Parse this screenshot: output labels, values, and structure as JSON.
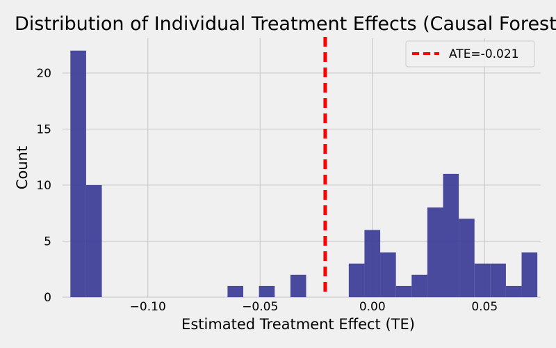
{
  "chart_data": {
    "type": "bar",
    "title": "Distribution of Individual Treatment Effects (Causal Forest)",
    "xlabel": "Estimated Treatment Effect (TE)",
    "ylabel": "Count",
    "xlim": [
      -0.138,
      0.075
    ],
    "ylim": [
      0,
      23.1
    ],
    "grid": true,
    "legend_position": "top-right",
    "bin_width": 0.007,
    "bins": [
      {
        "x0": -0.1345,
        "count": 22
      },
      {
        "x0": -0.1275,
        "count": 10
      },
      {
        "x0": -0.1205,
        "count": 0
      },
      {
        "x0": -0.1135,
        "count": 0
      },
      {
        "x0": -0.1065,
        "count": 0
      },
      {
        "x0": -0.0995,
        "count": 0
      },
      {
        "x0": -0.0925,
        "count": 0
      },
      {
        "x0": -0.0855,
        "count": 0
      },
      {
        "x0": -0.0785,
        "count": 0
      },
      {
        "x0": -0.0715,
        "count": 0
      },
      {
        "x0": -0.0645,
        "count": 1
      },
      {
        "x0": -0.0575,
        "count": 0
      },
      {
        "x0": -0.0505,
        "count": 1
      },
      {
        "x0": -0.0435,
        "count": 0
      },
      {
        "x0": -0.0365,
        "count": 2
      },
      {
        "x0": -0.0295,
        "count": 0
      },
      {
        "x0": -0.0225,
        "count": 0
      },
      {
        "x0": -0.0155,
        "count": 0
      },
      {
        "x0": -0.0105,
        "count": 3
      },
      {
        "x0": -0.0035,
        "count": 6
      },
      {
        "x0": 0.0035,
        "count": 4
      },
      {
        "x0": 0.0105,
        "count": 1
      },
      {
        "x0": 0.0175,
        "count": 2
      },
      {
        "x0": 0.0245,
        "count": 8
      },
      {
        "x0": 0.0315,
        "count": 11
      },
      {
        "x0": 0.0385,
        "count": 7
      },
      {
        "x0": 0.0455,
        "count": 3
      },
      {
        "x0": 0.0525,
        "count": 3
      },
      {
        "x0": 0.0595,
        "count": 1
      },
      {
        "x0": 0.0665,
        "count": 4
      }
    ],
    "xticks": [
      {
        "value": -0.1,
        "label": "−0.10"
      },
      {
        "value": -0.05,
        "label": "−0.05"
      },
      {
        "value": 0.0,
        "label": "0.00"
      },
      {
        "value": 0.05,
        "label": "0.05"
      }
    ],
    "yticks": [
      {
        "value": 0,
        "label": "0"
      },
      {
        "value": 5,
        "label": "5"
      },
      {
        "value": 10,
        "label": "10"
      },
      {
        "value": 15,
        "label": "15"
      },
      {
        "value": 20,
        "label": "20"
      }
    ],
    "ate": {
      "value": -0.021,
      "label": "ATE=-0.021"
    },
    "colors": {
      "bar": "#3f3f99",
      "ate_line": "#ff0000",
      "grid": "#cbcbcb",
      "background": "#f0f0f0"
    }
  }
}
